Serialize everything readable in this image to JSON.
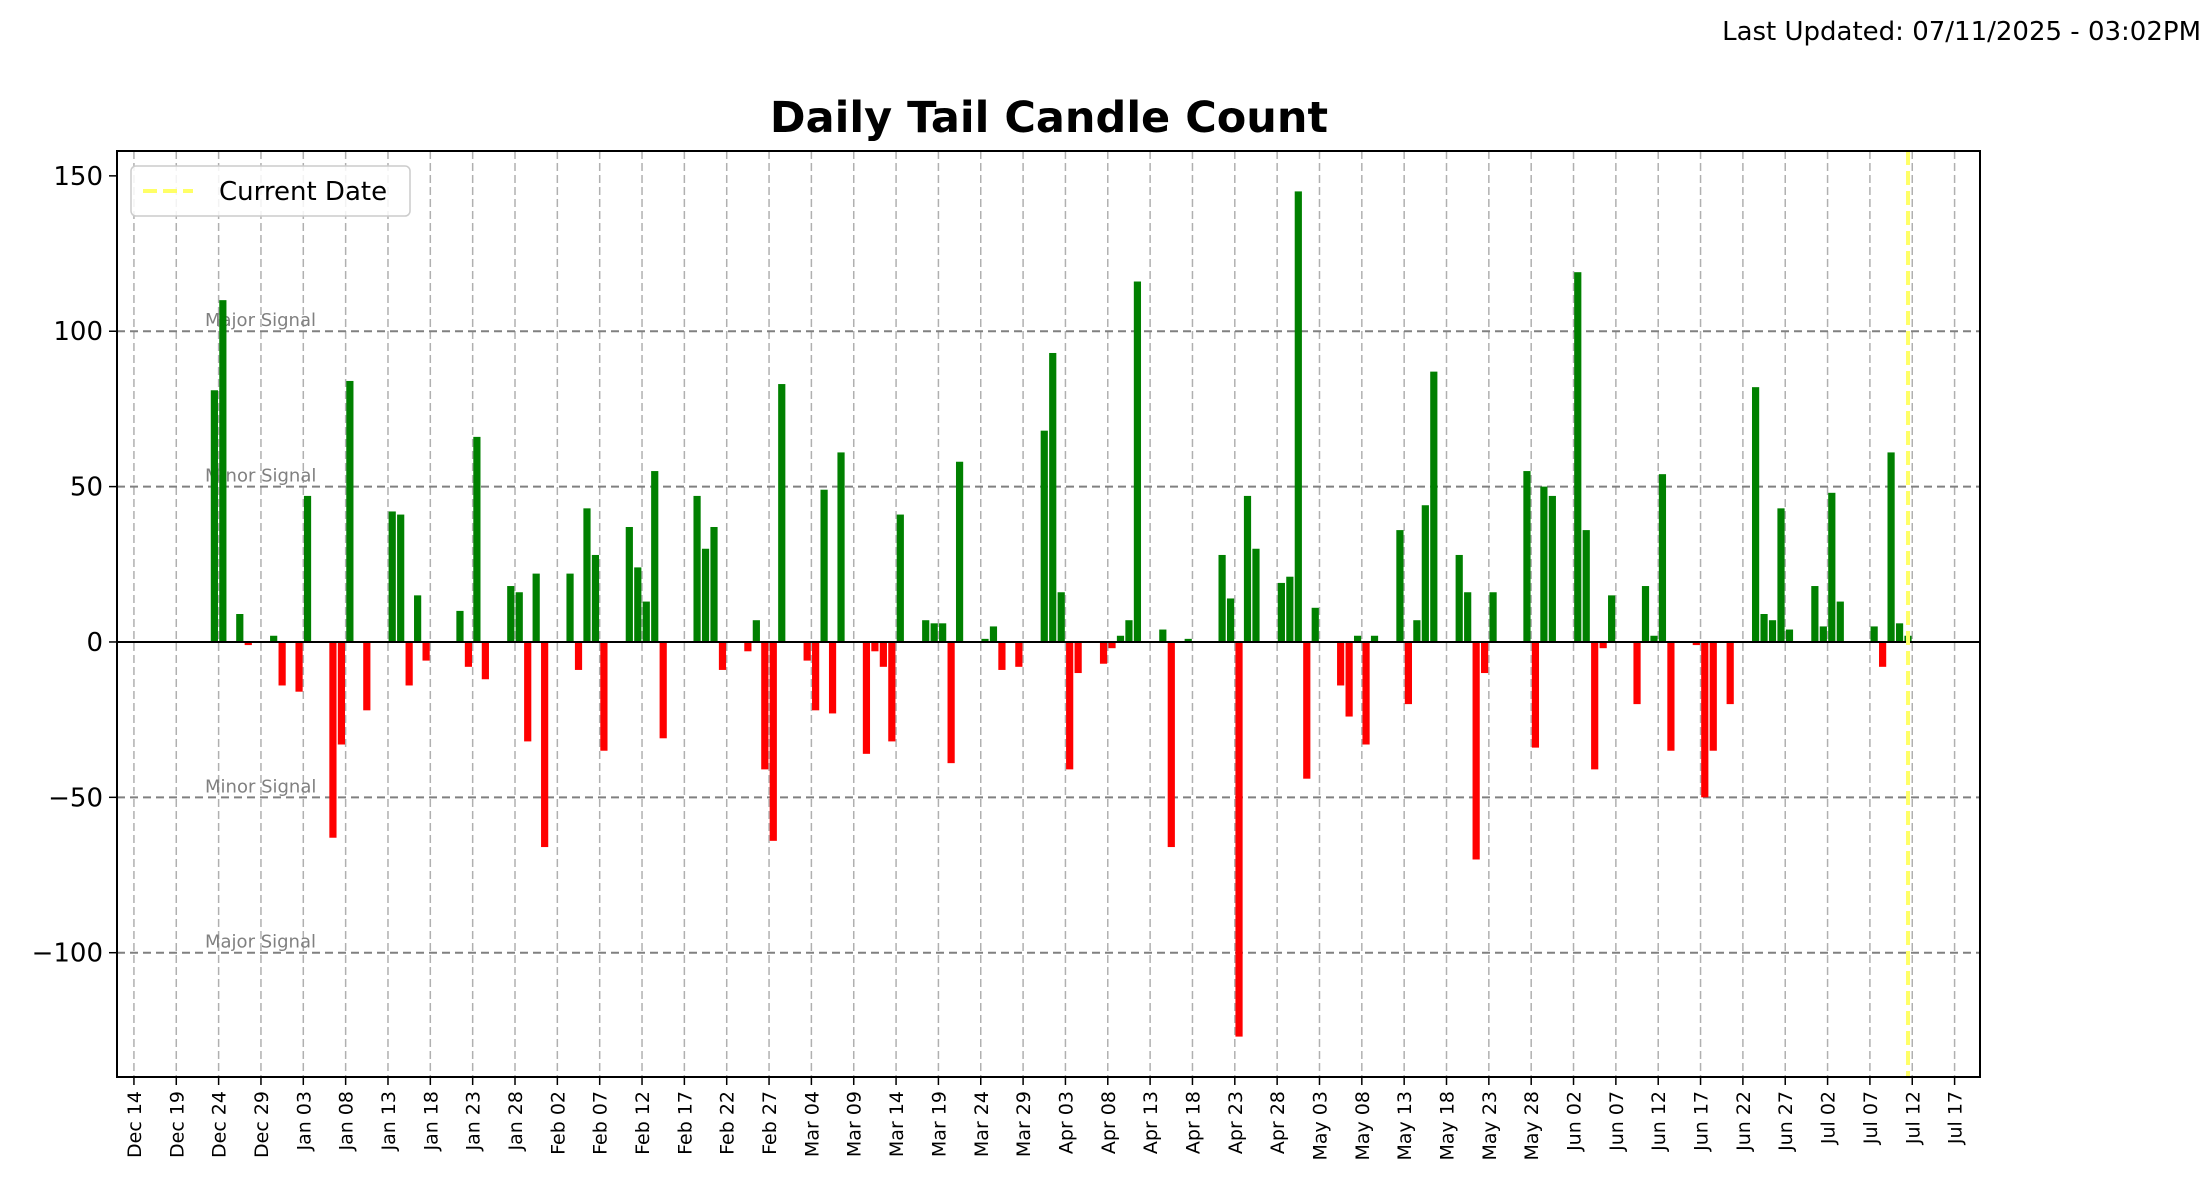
{
  "header": {
    "last_updated": "Last Updated: 07/11/2025 - 03:02PM"
  },
  "chart_data": {
    "type": "bar",
    "title": "Daily Tail Candle Count",
    "xlabel": "",
    "ylabel": "",
    "xlim": [
      "2024-12-12",
      "2025-07-20"
    ],
    "ylim": [
      -140,
      158
    ],
    "grid": "vertical dashed",
    "legend": {
      "placement": "top-left",
      "entries": [
        {
          "label": "Current Date",
          "color": "#ffff66",
          "style": "dashed"
        }
      ]
    },
    "current_date": "2025-07-11",
    "x_ticks": [
      "2024-12-14",
      "2024-12-19",
      "2024-12-24",
      "2024-12-29",
      "2025-01-03",
      "2025-01-08",
      "2025-01-13",
      "2025-01-18",
      "2025-01-23",
      "2025-01-28",
      "2025-02-02",
      "2025-02-07",
      "2025-02-12",
      "2025-02-17",
      "2025-02-22",
      "2025-02-27",
      "2025-03-04",
      "2025-03-09",
      "2025-03-14",
      "2025-03-19",
      "2025-03-24",
      "2025-03-29",
      "2025-04-03",
      "2025-04-08",
      "2025-04-13",
      "2025-04-18",
      "2025-04-23",
      "2025-04-28",
      "2025-05-03",
      "2025-05-08",
      "2025-05-13",
      "2025-05-18",
      "2025-05-23",
      "2025-05-28",
      "2025-06-02",
      "2025-06-07",
      "2025-06-12",
      "2025-06-17",
      "2025-06-22",
      "2025-06-27",
      "2025-07-02",
      "2025-07-07",
      "2025-07-12",
      "2025-07-17"
    ],
    "x_tick_labels": [
      "Dec 14",
      "Dec 19",
      "Dec 24",
      "Dec 29",
      "Jan 03",
      "Jan 08",
      "Jan 13",
      "Jan 18",
      "Jan 23",
      "Jan 28",
      "Feb 02",
      "Feb 07",
      "Feb 12",
      "Feb 17",
      "Feb 22",
      "Feb 27",
      "Mar 04",
      "Mar 09",
      "Mar 14",
      "Mar 19",
      "Mar 24",
      "Mar 29",
      "Apr 03",
      "Apr 08",
      "Apr 13",
      "Apr 18",
      "Apr 23",
      "Apr 28",
      "May 03",
      "May 08",
      "May 13",
      "May 18",
      "May 23",
      "May 28",
      "Jun 02",
      "Jun 07",
      "Jun 12",
      "Jun 17",
      "Jun 22",
      "Jun 27",
      "Jul 02",
      "Jul 07",
      "Jul 12",
      "Jul 17"
    ],
    "y_ticks": [
      150,
      100,
      50,
      0,
      -50,
      -100
    ],
    "y_tick_labels": [
      "150",
      "100",
      "50",
      "0",
      "−50",
      "−100"
    ],
    "thresholds": [
      {
        "value": 100,
        "label": "Major Signal"
      },
      {
        "value": 50,
        "label": "Minor Signal"
      },
      {
        "value": -50,
        "label": "Minor Signal"
      },
      {
        "value": -100,
        "label": "Major Signal"
      }
    ],
    "colors": {
      "positive": "#008000",
      "negative": "#ff0000",
      "threshold": "#808080",
      "grid": "#b0b0b0",
      "current_date": "#ffff66"
    },
    "series": [
      {
        "values": [
          [
            "2024-12-23",
            81
          ],
          [
            "2024-12-24",
            110
          ],
          [
            "2024-12-26",
            9
          ],
          [
            "2024-12-27",
            -1
          ],
          [
            "2024-12-30",
            2
          ],
          [
            "2024-12-31",
            -14
          ],
          [
            "2025-01-02",
            -16
          ],
          [
            "2025-01-03",
            47
          ],
          [
            "2025-01-06",
            -63
          ],
          [
            "2025-01-07",
            -33
          ],
          [
            "2025-01-08",
            84
          ],
          [
            "2025-01-10",
            -22
          ],
          [
            "2025-01-13",
            42
          ],
          [
            "2025-01-14",
            41
          ],
          [
            "2025-01-15",
            -14
          ],
          [
            "2025-01-16",
            15
          ],
          [
            "2025-01-17",
            -6
          ],
          [
            "2025-01-21",
            10
          ],
          [
            "2025-01-22",
            -8
          ],
          [
            "2025-01-23",
            66
          ],
          [
            "2025-01-24",
            -12
          ],
          [
            "2025-01-27",
            18
          ],
          [
            "2025-01-28",
            16
          ],
          [
            "2025-01-29",
            -32
          ],
          [
            "2025-01-30",
            22
          ],
          [
            "2025-01-31",
            -66
          ],
          [
            "2025-02-03",
            22
          ],
          [
            "2025-02-04",
            -9
          ],
          [
            "2025-02-05",
            43
          ],
          [
            "2025-02-06",
            28
          ],
          [
            "2025-02-07",
            -35
          ],
          [
            "2025-02-10",
            37
          ],
          [
            "2025-02-11",
            24
          ],
          [
            "2025-02-12",
            13
          ],
          [
            "2025-02-13",
            55
          ],
          [
            "2025-02-14",
            -31
          ],
          [
            "2025-02-18",
            47
          ],
          [
            "2025-02-19",
            30
          ],
          [
            "2025-02-20",
            37
          ],
          [
            "2025-02-21",
            -9
          ],
          [
            "2025-02-24",
            -3
          ],
          [
            "2025-02-25",
            7
          ],
          [
            "2025-02-26",
            -41
          ],
          [
            "2025-02-27",
            -64
          ],
          [
            "2025-02-28",
            83
          ],
          [
            "2025-03-03",
            -6
          ],
          [
            "2025-03-04",
            -22
          ],
          [
            "2025-03-05",
            49
          ],
          [
            "2025-03-06",
            -23
          ],
          [
            "2025-03-07",
            61
          ],
          [
            "2025-03-10",
            -36
          ],
          [
            "2025-03-11",
            -3
          ],
          [
            "2025-03-12",
            -8
          ],
          [
            "2025-03-13",
            -32
          ],
          [
            "2025-03-14",
            41
          ],
          [
            "2025-03-17",
            7
          ],
          [
            "2025-03-18",
            6
          ],
          [
            "2025-03-19",
            6
          ],
          [
            "2025-03-20",
            -39
          ],
          [
            "2025-03-21",
            58
          ],
          [
            "2025-03-24",
            1
          ],
          [
            "2025-03-25",
            5
          ],
          [
            "2025-03-26",
            -9
          ],
          [
            "2025-03-28",
            -8
          ],
          [
            "2025-03-31",
            68
          ],
          [
            "2025-04-01",
            93
          ],
          [
            "2025-04-02",
            16
          ],
          [
            "2025-04-03",
            -41
          ],
          [
            "2025-04-04",
            -10
          ],
          [
            "2025-04-07",
            -7
          ],
          [
            "2025-04-08",
            -2
          ],
          [
            "2025-04-09",
            2
          ],
          [
            "2025-04-10",
            7
          ],
          [
            "2025-04-11",
            116
          ],
          [
            "2025-04-14",
            4
          ],
          [
            "2025-04-15",
            -66
          ],
          [
            "2025-04-17",
            1
          ],
          [
            "2025-04-21",
            28
          ],
          [
            "2025-04-22",
            14
          ],
          [
            "2025-04-23",
            -127
          ],
          [
            "2025-04-24",
            47
          ],
          [
            "2025-04-25",
            30
          ],
          [
            "2025-04-28",
            19
          ],
          [
            "2025-04-29",
            21
          ],
          [
            "2025-04-30",
            145
          ],
          [
            "2025-05-01",
            -44
          ],
          [
            "2025-05-02",
            11
          ],
          [
            "2025-05-05",
            -14
          ],
          [
            "2025-05-06",
            -24
          ],
          [
            "2025-05-07",
            2
          ],
          [
            "2025-05-08",
            -33
          ],
          [
            "2025-05-09",
            2
          ],
          [
            "2025-05-12",
            36
          ],
          [
            "2025-05-13",
            -20
          ],
          [
            "2025-05-14",
            7
          ],
          [
            "2025-05-15",
            44
          ],
          [
            "2025-05-16",
            87
          ],
          [
            "2025-05-19",
            28
          ],
          [
            "2025-05-20",
            16
          ],
          [
            "2025-05-21",
            -70
          ],
          [
            "2025-05-22",
            -10
          ],
          [
            "2025-05-23",
            16
          ],
          [
            "2025-05-27",
            55
          ],
          [
            "2025-05-28",
            -34
          ],
          [
            "2025-05-29",
            50
          ],
          [
            "2025-05-30",
            47
          ],
          [
            "2025-06-02",
            119
          ],
          [
            "2025-06-03",
            36
          ],
          [
            "2025-06-04",
            -41
          ],
          [
            "2025-06-05",
            -2
          ],
          [
            "2025-06-06",
            15
          ],
          [
            "2025-06-09",
            -20
          ],
          [
            "2025-06-10",
            18
          ],
          [
            "2025-06-11",
            2
          ],
          [
            "2025-06-12",
            54
          ],
          [
            "2025-06-13",
            -35
          ],
          [
            "2025-06-16",
            -1
          ],
          [
            "2025-06-17",
            -50
          ],
          [
            "2025-06-18",
            -35
          ],
          [
            "2025-06-20",
            -20
          ],
          [
            "2025-06-23",
            82
          ],
          [
            "2025-06-24",
            9
          ],
          [
            "2025-06-25",
            7
          ],
          [
            "2025-06-26",
            43
          ],
          [
            "2025-06-27",
            4
          ],
          [
            "2025-06-30",
            18
          ],
          [
            "2025-07-01",
            5
          ],
          [
            "2025-07-02",
            48
          ],
          [
            "2025-07-03",
            13
          ],
          [
            "2025-07-07",
            5
          ],
          [
            "2025-07-08",
            -8
          ],
          [
            "2025-07-09",
            61
          ],
          [
            "2025-07-10",
            6
          ],
          [
            "2025-07-11",
            2
          ]
        ]
      }
    ]
  }
}
